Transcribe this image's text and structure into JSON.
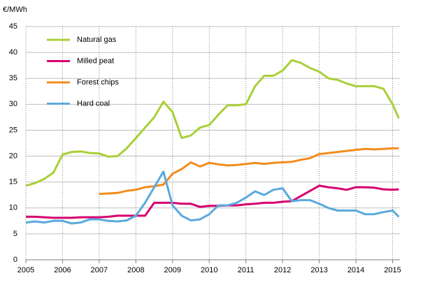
{
  "chart_data": {
    "type": "line",
    "y_label": "€/MWh",
    "x": [
      2005,
      2005.25,
      2005.5,
      2005.75,
      2006,
      2006.25,
      2006.5,
      2006.75,
      2007,
      2007.25,
      2007.5,
      2007.75,
      2008,
      2008.25,
      2008.5,
      2008.75,
      2009,
      2009.25,
      2009.5,
      2009.75,
      2010,
      2010.25,
      2010.5,
      2010.75,
      2011,
      2011.25,
      2011.5,
      2011.75,
      2012,
      2012.25,
      2012.5,
      2012.75,
      2013,
      2013.25,
      2013.5,
      2013.75,
      2014,
      2014.25,
      2014.5,
      2014.75,
      2015,
      2015.17
    ],
    "series": [
      {
        "name": "Natural gas",
        "color": "#a9cf38",
        "values": [
          14.3,
          14.8,
          15.6,
          16.8,
          20.3,
          20.8,
          20.9,
          20.6,
          20.5,
          19.9,
          20.0,
          21.5,
          23.5,
          25.5,
          27.5,
          30.5,
          28.5,
          23.5,
          24.0,
          25.5,
          26.0,
          28.0,
          29.8,
          29.8,
          30.0,
          33.5,
          35.5,
          35.5,
          36.5,
          38.5,
          38.0,
          37.0,
          36.3,
          35.0,
          34.7,
          34.0,
          33.5,
          33.5,
          33.5,
          33.0,
          30.0,
          27.3
        ]
      },
      {
        "name": "Milled peat",
        "color": "#d6006e",
        "values": [
          8.3,
          8.3,
          8.2,
          8.1,
          8.1,
          8.1,
          8.2,
          8.2,
          8.2,
          8.3,
          8.5,
          8.5,
          8.5,
          8.5,
          11.0,
          11.0,
          11.0,
          10.8,
          10.8,
          10.2,
          10.4,
          10.4,
          10.5,
          10.5,
          10.7,
          10.8,
          11.0,
          11.0,
          11.2,
          11.3,
          12.3,
          13.3,
          14.3,
          14.0,
          13.8,
          13.5,
          14.0,
          14.0,
          13.9,
          13.6,
          13.5,
          13.6
        ]
      },
      {
        "name": "Forest chips",
        "color": "#f28c1e",
        "values": [
          null,
          null,
          null,
          null,
          null,
          null,
          null,
          null,
          12.7,
          12.8,
          12.9,
          13.3,
          13.5,
          14.0,
          14.2,
          14.5,
          16.6,
          17.5,
          18.8,
          18.0,
          18.7,
          18.4,
          18.2,
          18.3,
          18.5,
          18.7,
          18.5,
          18.7,
          18.8,
          18.9,
          19.3,
          19.6,
          20.4,
          20.6,
          20.8,
          21.0,
          21.2,
          21.4,
          21.3,
          21.4,
          21.5,
          21.5
        ]
      },
      {
        "name": "Hard coal",
        "color": "#5aa9dc",
        "values": [
          7.2,
          7.4,
          7.2,
          7.5,
          7.5,
          7.0,
          7.2,
          7.8,
          7.8,
          7.5,
          7.4,
          7.6,
          8.5,
          11.0,
          14.0,
          17.0,
          10.5,
          8.5,
          7.6,
          7.8,
          8.8,
          10.5,
          10.5,
          11.0,
          12.0,
          13.2,
          12.5,
          13.5,
          13.8,
          11.3,
          11.5,
          11.5,
          10.8,
          10.0,
          9.5,
          9.5,
          9.5,
          8.8,
          8.8,
          9.2,
          9.5,
          8.3
        ]
      }
    ],
    "xlim": [
      2005,
      2015.2
    ],
    "xticks": [
      2005,
      2006,
      2007,
      2008,
      2009,
      2010,
      2011,
      2012,
      2013,
      2014,
      2015
    ],
    "ylim": [
      0,
      45
    ],
    "yticks": [
      0,
      5,
      10,
      15,
      20,
      25,
      30,
      35,
      40,
      45
    ],
    "grid": true,
    "legend": "top-left"
  }
}
